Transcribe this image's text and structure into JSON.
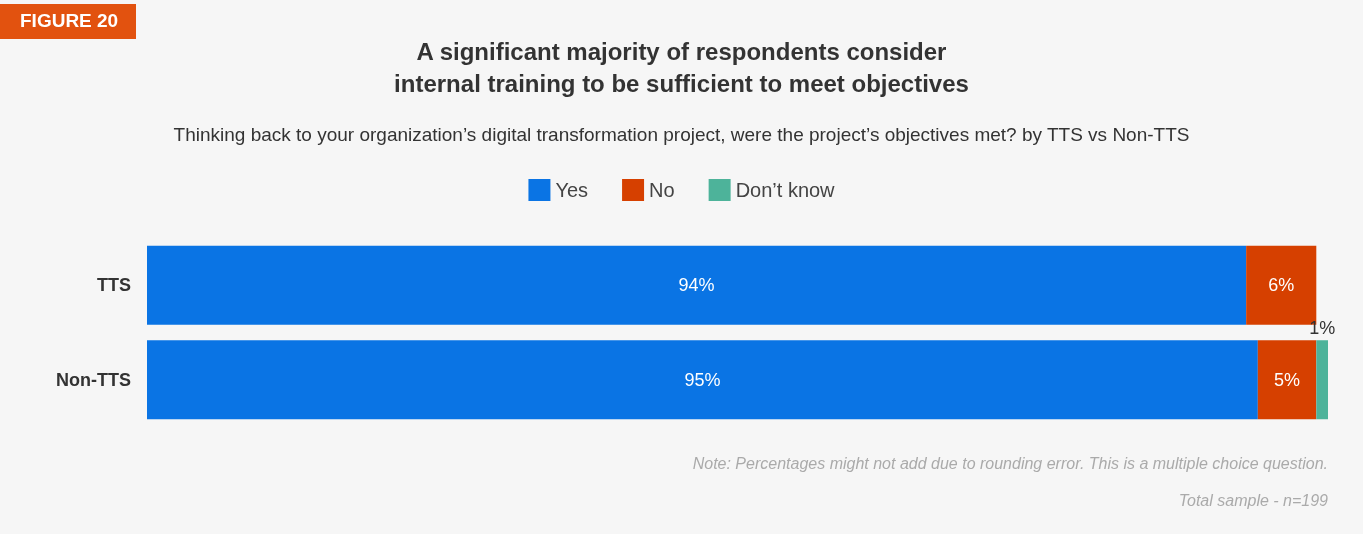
{
  "chart_data": {
    "type": "bar",
    "orientation": "horizontal",
    "stacked": true,
    "title": "A significant majority of respondents consider internal training to be sufficient to meet objectives",
    "subtitle": "Thinking back to your organization’s digital transformation project, were the project’s objectives met? by TTS vs Non-TTS",
    "annotations": [
      "FIGURE 20",
      "Note: Percentages might not add due to rounding error. This is a multiple choice question.",
      "Total sample - n=199"
    ],
    "categories": [
      "TTS",
      "Non-TTS"
    ],
    "series": [
      {
        "name": "Yes",
        "color": "#0a74e4",
        "values": [
          94,
          95
        ],
        "value_labels": [
          "94%",
          "95%"
        ]
      },
      {
        "name": "No",
        "color": "#d64000",
        "values": [
          6,
          5
        ],
        "value_labels": [
          "6%",
          "5%"
        ]
      },
      {
        "name": "Don’t know",
        "color": "#4db39a",
        "values": [
          null,
          1
        ],
        "value_labels": [
          null,
          "1%"
        ]
      }
    ],
    "legend": "top"
  }
}
